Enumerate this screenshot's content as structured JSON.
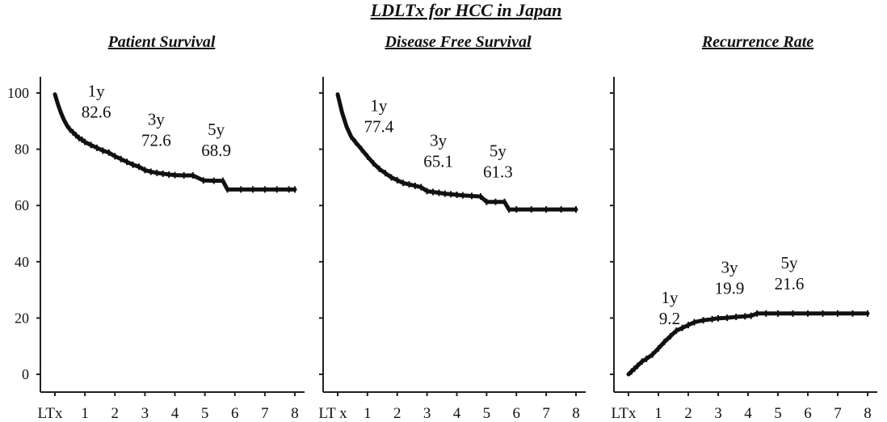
{
  "title": "LDLTx for HCC in Japan",
  "y_ticks": [
    "100",
    "80",
    "60",
    "40",
    "20",
    "0"
  ],
  "chart_data": [
    {
      "type": "line",
      "title": "Patient Survival",
      "x_tick_labels": [
        "LTx",
        "1",
        "2",
        "3",
        "4",
        "5",
        "6",
        "7",
        "8"
      ],
      "xlim": [
        0,
        8
      ],
      "ylim": [
        0,
        100
      ],
      "series": [
        {
          "x": [
            0,
            0.1,
            0.2,
            0.3,
            0.4,
            0.5,
            0.6,
            0.7,
            0.8,
            0.9,
            1.0,
            1.2,
            1.4,
            1.6,
            1.8,
            2.0,
            2.2,
            2.4,
            2.6,
            2.8,
            3.0,
            3.2,
            3.4,
            3.6,
            3.8,
            4.0,
            4.3,
            4.6,
            4.95,
            5.3,
            5.6,
            5.75,
            6.2,
            6.6,
            7.0,
            7.4,
            7.8,
            8.0
          ],
          "y": [
            99.5,
            96,
            93,
            90.5,
            88.5,
            87,
            86,
            85,
            84,
            83.4,
            82.6,
            81.5,
            80.5,
            79.5,
            78.8,
            77.5,
            76.5,
            75.5,
            74.5,
            73.8,
            72.6,
            72,
            71.6,
            71.3,
            71,
            70.8,
            70.7,
            70.7,
            68.9,
            68.8,
            68.8,
            65.7,
            65.7,
            65.7,
            65.7,
            65.7,
            65.7,
            65.7
          ]
        }
      ],
      "annotations": [
        {
          "label": "1y",
          "value": "82.6",
          "x": 1.0,
          "y": 82.6
        },
        {
          "label": "3y",
          "value": "72.6",
          "x": 3.0,
          "y": 72.6
        },
        {
          "label": "5y",
          "value": "68.9",
          "x": 5.0,
          "y": 68.9
        }
      ]
    },
    {
      "type": "line",
      "title": "Disease Free Survival",
      "x_tick_labels": [
        "LT x",
        "1",
        "2",
        "3",
        "4",
        "5",
        "6",
        "7",
        "8"
      ],
      "xlim": [
        0,
        8
      ],
      "ylim": [
        0,
        100
      ],
      "series": [
        {
          "x": [
            0,
            0.15,
            0.3,
            0.45,
            0.6,
            0.8,
            1.0,
            1.2,
            1.4,
            1.6,
            1.8,
            2.0,
            2.2,
            2.4,
            2.6,
            2.8,
            3.0,
            3.2,
            3.4,
            3.6,
            3.8,
            4.0,
            4.2,
            4.5,
            4.8,
            5.0,
            5.3,
            5.6,
            5.75,
            6.0,
            6.5,
            7.0,
            7.5,
            8.0
          ],
          "y": [
            99.5,
            93,
            88,
            84.5,
            82.5,
            80,
            77.4,
            75,
            73,
            71.5,
            70,
            69,
            68,
            67.5,
            67,
            66.5,
            65.1,
            64.8,
            64.5,
            64.2,
            64,
            63.8,
            63.6,
            63.4,
            63.2,
            61.3,
            61.3,
            61.3,
            58.6,
            58.6,
            58.6,
            58.6,
            58.6,
            58.6
          ]
        }
      ],
      "annotations": [
        {
          "label": "1y",
          "value": "77.4",
          "x": 1.0,
          "y": 77.4
        },
        {
          "label": "3y",
          "value": "65.1",
          "x": 3.0,
          "y": 65.1
        },
        {
          "label": "5y",
          "value": "61.3",
          "x": 5.0,
          "y": 61.3
        }
      ]
    },
    {
      "type": "line",
      "title": "Recurrence Rate",
      "x_tick_labels": [
        "LTx",
        "1",
        "2",
        "3",
        "4",
        "5",
        "6",
        "7",
        "8"
      ],
      "xlim": [
        0,
        8
      ],
      "ylim": [
        0,
        100
      ],
      "series": [
        {
          "x": [
            0,
            0.1,
            0.2,
            0.3,
            0.45,
            0.6,
            0.8,
            1.0,
            1.2,
            1.4,
            1.6,
            1.8,
            2.0,
            2.2,
            2.5,
            2.8,
            3.0,
            3.3,
            3.6,
            3.9,
            4.1,
            4.3,
            4.6,
            5.0,
            5.5,
            6.0,
            6.5,
            7.0,
            7.5,
            8.0
          ],
          "y": [
            0,
            1,
            2,
            3,
            4.5,
            5.5,
            7,
            9.2,
            11.5,
            13.5,
            15.5,
            16.5,
            17.5,
            18.5,
            19.2,
            19.6,
            19.9,
            20.1,
            20.4,
            20.6,
            20.8,
            21.6,
            21.6,
            21.6,
            21.6,
            21.6,
            21.6,
            21.6,
            21.6,
            21.6
          ]
        }
      ],
      "annotations": [
        {
          "label": "1y",
          "value": "9.2",
          "x": 1.0,
          "y": 9.2
        },
        {
          "label": "3y",
          "value": "19.9",
          "x": 3.0,
          "y": 19.9
        },
        {
          "label": "5y",
          "value": "21.6",
          "x": 5.0,
          "y": 21.6
        }
      ]
    }
  ]
}
